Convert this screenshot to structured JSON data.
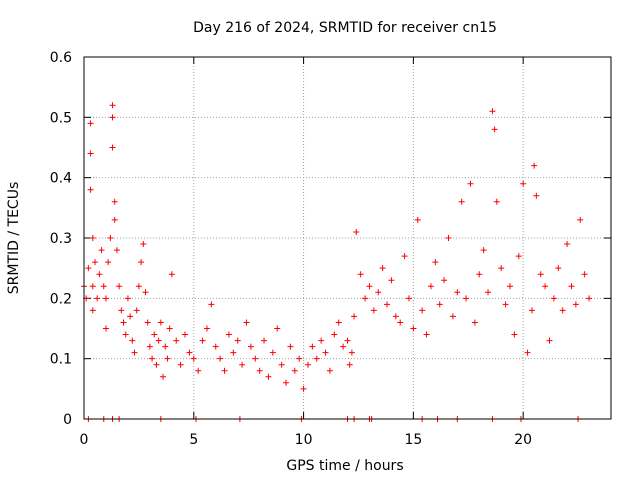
{
  "chart_data": {
    "type": "scatter",
    "title": "Day 216 of 2024, SRMTID for receiver cn15",
    "xlabel": "GPS time / hours",
    "ylabel": "SRMTID / TECUs",
    "xlim": [
      0,
      24
    ],
    "ylim": [
      0,
      0.6
    ],
    "xticks": [
      0,
      5,
      10,
      15,
      20
    ],
    "xtick_labels": [
      "0",
      "5",
      "10",
      "15",
      "20"
    ],
    "yticks": [
      0,
      0.1,
      0.2,
      0.3,
      0.4,
      0.5,
      0.6
    ],
    "ytick_labels": [
      "0",
      "0.1",
      "0.2",
      "0.3",
      "0.4",
      "0.5",
      "0.6"
    ],
    "grid": true,
    "marker": "+",
    "series": [
      {
        "name": "SRMTID",
        "color": "#ff0000",
        "x": [
          0.0,
          0.1,
          0.2,
          0.3,
          0.3,
          0.3,
          0.4,
          0.4,
          0.4,
          0.5,
          0.6,
          0.7,
          0.8,
          0.9,
          1.0,
          1.0,
          1.1,
          1.2,
          1.3,
          1.3,
          1.3,
          1.4,
          1.4,
          1.5,
          1.6,
          1.7,
          1.8,
          1.9,
          2.0,
          2.1,
          2.2,
          2.3,
          2.4,
          2.5,
          2.6,
          2.7,
          2.8,
          2.9,
          3.0,
          3.1,
          3.2,
          3.3,
          3.4,
          3.5,
          3.6,
          3.7,
          3.8,
          3.9,
          4.0,
          4.2,
          4.4,
          4.6,
          4.8,
          5.0,
          5.2,
          5.4,
          5.6,
          5.8,
          6.0,
          6.2,
          6.4,
          6.6,
          6.8,
          7.0,
          7.2,
          7.4,
          7.6,
          7.8,
          8.0,
          8.2,
          8.4,
          8.6,
          8.8,
          9.0,
          9.2,
          9.4,
          9.6,
          9.8,
          10.0,
          10.2,
          10.4,
          10.6,
          10.8,
          11.0,
          11.2,
          11.4,
          11.6,
          11.8,
          12.0,
          12.1,
          12.2,
          12.3,
          12.4,
          12.6,
          12.8,
          13.0,
          13.2,
          13.4,
          13.6,
          13.8,
          14.0,
          14.2,
          14.4,
          14.6,
          14.8,
          15.0,
          15.2,
          15.4,
          15.6,
          15.8,
          16.0,
          16.2,
          16.4,
          16.6,
          16.8,
          17.0,
          17.2,
          17.4,
          17.6,
          17.8,
          18.0,
          18.2,
          18.4,
          18.6,
          18.7,
          18.8,
          19.0,
          19.2,
          19.4,
          19.6,
          19.8,
          20.0,
          20.2,
          20.4,
          20.5,
          20.6,
          20.8,
          21.0,
          21.2,
          21.4,
          21.6,
          21.8,
          22.0,
          22.2,
          22.4,
          22.6,
          22.8,
          23.0,
          0.2,
          0.9,
          1.3,
          1.6,
          3.5,
          5.1,
          7.1,
          9.9,
          12.0,
          12.3,
          13.0,
          13.1,
          15.4,
          16.1,
          17.0,
          18.6,
          19.9,
          22.5
        ],
        "y": [
          0.22,
          0.2,
          0.25,
          0.44,
          0.49,
          0.38,
          0.3,
          0.18,
          0.22,
          0.26,
          0.2,
          0.24,
          0.28,
          0.22,
          0.2,
          0.15,
          0.26,
          0.3,
          0.45,
          0.5,
          0.52,
          0.36,
          0.33,
          0.28,
          0.22,
          0.18,
          0.16,
          0.14,
          0.2,
          0.17,
          0.13,
          0.11,
          0.18,
          0.22,
          0.26,
          0.29,
          0.21,
          0.16,
          0.12,
          0.1,
          0.14,
          0.09,
          0.13,
          0.16,
          0.07,
          0.12,
          0.1,
          0.15,
          0.24,
          0.13,
          0.09,
          0.14,
          0.11,
          0.1,
          0.08,
          0.13,
          0.15,
          0.19,
          0.12,
          0.1,
          0.08,
          0.14,
          0.11,
          0.13,
          0.09,
          0.16,
          0.12,
          0.1,
          0.08,
          0.13,
          0.07,
          0.11,
          0.15,
          0.09,
          0.06,
          0.12,
          0.08,
          0.1,
          0.05,
          0.09,
          0.12,
          0.1,
          0.13,
          0.11,
          0.08,
          0.14,
          0.16,
          0.12,
          0.13,
          0.09,
          0.11,
          0.17,
          0.31,
          0.24,
          0.2,
          0.22,
          0.18,
          0.21,
          0.25,
          0.19,
          0.23,
          0.17,
          0.16,
          0.27,
          0.2,
          0.15,
          0.33,
          0.18,
          0.14,
          0.22,
          0.26,
          0.19,
          0.23,
          0.3,
          0.17,
          0.21,
          0.36,
          0.2,
          0.39,
          0.16,
          0.24,
          0.28,
          0.21,
          0.51,
          0.48,
          0.36,
          0.25,
          0.19,
          0.22,
          0.14,
          0.27,
          0.39,
          0.11,
          0.18,
          0.42,
          0.37,
          0.24,
          0.22,
          0.13,
          0.2,
          0.25,
          0.18,
          0.29,
          0.22,
          0.19,
          0.33,
          0.24,
          0.2,
          0.0,
          0.0,
          0.0,
          0.0,
          0.0,
          0.0,
          0.0,
          0.0,
          0.0,
          0.0,
          0.0,
          0.0,
          0.0,
          0.0,
          0.0,
          0.0,
          0.0,
          0.0
        ]
      }
    ]
  }
}
